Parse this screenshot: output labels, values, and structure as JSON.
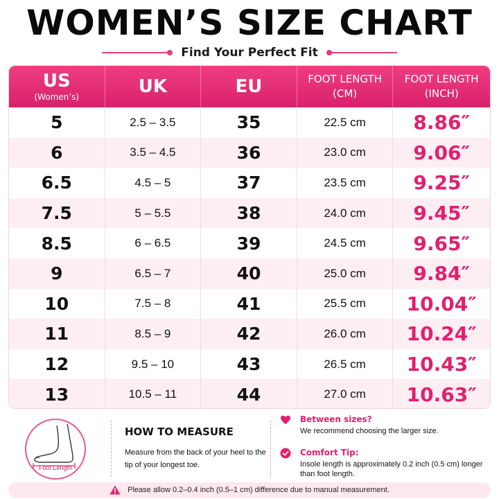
{
  "title": "WOMEN’S SIZE CHART",
  "subtitle": "Find Your Perfect Fit",
  "colors": {
    "accent": "#e21f6e",
    "header_bg": "#e3306f",
    "row_alt": "#fdeef4"
  },
  "table": {
    "headers": [
      {
        "main": "US",
        "sub": "(Women’s)"
      },
      {
        "main": "UK"
      },
      {
        "main": "EU"
      },
      {
        "line1": "FOOT LENGTH",
        "line2": "(CM)"
      },
      {
        "line1": "FOOT LENGTH",
        "line2": "(INCH)"
      }
    ],
    "rows": [
      {
        "us": "5",
        "uk": "2.5 – 3.5",
        "eu": "35",
        "cm": "22.5 cm",
        "inch": "8.86″"
      },
      {
        "us": "6",
        "uk": "3.5 – 4.5",
        "eu": "36",
        "cm": "23.0 cm",
        "inch": "9.06″"
      },
      {
        "us": "6.5",
        "uk": "4.5 – 5",
        "eu": "37",
        "cm": "23.5 cm",
        "inch": "9.25″"
      },
      {
        "us": "7.5",
        "uk": "5 – 5.5",
        "eu": "38",
        "cm": "24.0 cm",
        "inch": "9.45″"
      },
      {
        "us": "8.5",
        "uk": "6 – 6.5",
        "eu": "39",
        "cm": "24.5 cm",
        "inch": "9.65″"
      },
      {
        "us": "9",
        "uk": "6.5 – 7",
        "eu": "40",
        "cm": "25.0 cm",
        "inch": "9.84″"
      },
      {
        "us": "10",
        "uk": "7.5 – 8",
        "eu": "41",
        "cm": "25.5 cm",
        "inch": "10.04″"
      },
      {
        "us": "11",
        "uk": "8.5 – 9",
        "eu": "42",
        "cm": "26.0 cm",
        "inch": "10.24″"
      },
      {
        "us": "12",
        "uk": "9.5 – 10",
        "eu": "43",
        "cm": "26.5 cm",
        "inch": "10.43″"
      },
      {
        "us": "13",
        "uk": "10.5 – 11",
        "eu": "44",
        "cm": "27.0 cm",
        "inch": "10.63″"
      }
    ]
  },
  "foot_illustration": {
    "label": "Foot Length"
  },
  "how_to_measure": {
    "title": "HOW TO MEASURE",
    "text": "Measure from the back of your heel to the tip of your longest toe."
  },
  "tips": [
    {
      "icon": "heart-icon",
      "title": "Between sizes?",
      "text": "We recommend choosing the larger size."
    },
    {
      "icon": "checkmark-badge-icon",
      "title": "Comfort Tip:",
      "text": "Insole length is approximately 0.2 inch (0.5 cm) longer than foot length."
    }
  ],
  "notice": {
    "icon": "warning-icon",
    "text": "Please allow 0.2–0.4 inch (0.5–1 cm) difference due to manual measurement."
  }
}
